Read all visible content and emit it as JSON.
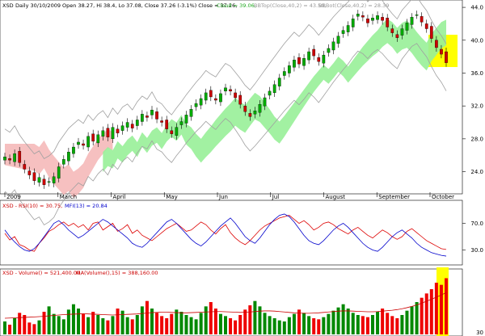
{
  "header": {
    "ticker": "XSD",
    "main_text": "Daily 30/10/2009 Open 38.27, Hi 38.4, Lo 37.08, Close 37.26 (-3.1%) Close = 37.26,",
    "cloud_text": "Cloud = 39.06,",
    "bbtop_text": "BBTop(Close,40,2) = 43.50,",
    "bbbot_text": "BBBot(Close,40,2) = 28.39"
  },
  "indicators": {
    "rsi_label": "XSD - RSI(10) = 30.75,",
    "mfi_label": "MFI(13) = 20.84",
    "volume_label": "XSD - Volume() = 521,400.00,",
    "ma_label": "MA(Volume(),15) = 388,160.00"
  },
  "colors": {
    "candle_up": "#00aa00",
    "candle_down": "#cc0000",
    "cloud_bull": "#98f098",
    "cloud_bear": "#f5b5b5",
    "bollinger": "#a0a0a0",
    "rsi": "#dd0000",
    "mfi": "#0000cc",
    "highlight": "#ffff00",
    "vol_up": "#008800",
    "vol_down": "#ee0000"
  },
  "chart_data": [
    {
      "type": "candlestick",
      "title": "XSD Daily 30/10/2009",
      "x_months": [
        "2009",
        "March",
        "April",
        "May",
        "Jun",
        "Jul",
        "August",
        "September",
        "October"
      ],
      "ylim": [
        21.5,
        44.5
      ],
      "y_ticks": [
        24.0,
        28.0,
        32.0,
        36.0,
        40.0,
        44.0
      ],
      "close_series": [
        25.8,
        25.4,
        26.2,
        25.1,
        24.3,
        23.6,
        22.9,
        23.3,
        22.4,
        22.8,
        23.4,
        24.6,
        25.5,
        26.4,
        27.0,
        27.6,
        27.2,
        28.3,
        27.7,
        28.5,
        29.0,
        28.2,
        29.4,
        28.7,
        29.6,
        30.0,
        29.3,
        30.3,
        31.0,
        30.6,
        31.5,
        30.4,
        30.0,
        29.2,
        28.6,
        29.4,
        30.1,
        30.9,
        31.6,
        32.3,
        32.9,
        33.6,
        33.1,
        32.7,
        33.5,
        34.2,
        33.8,
        33.0,
        32.2,
        31.3,
        30.7,
        31.4,
        32.2,
        33.0,
        33.8,
        34.6,
        35.4,
        36.2,
        36.9,
        37.6,
        37.1,
        37.8,
        38.6,
        38.1,
        37.4,
        38.2,
        39.0,
        39.8,
        40.5,
        41.2,
        41.8,
        42.6,
        43.2,
        42.8,
        42.1,
        42.7,
        43.0,
        42.4,
        41.6,
        40.9,
        40.3,
        41.4,
        42.1,
        42.8,
        43.1,
        42.2,
        41.4,
        40.2,
        39.1,
        38.3,
        37.26
      ],
      "bb_top": 43.5,
      "bb_bottom": 28.39,
      "cloud": 39.06,
      "last": {
        "open": 38.27,
        "high": 38.4,
        "low": 37.08,
        "close": 37.26,
        "change_pct": -3.1
      }
    },
    {
      "type": "line",
      "title": "RSI(10) / MFI(13)",
      "y_ticks": [
        30.0,
        70.0
      ],
      "series": [
        {
          "name": "RSI(10)",
          "values": [
            55,
            45,
            50,
            38,
            35,
            30,
            28,
            40,
            48,
            58,
            62,
            68,
            72,
            66,
            70,
            64,
            68,
            60,
            70,
            72,
            60,
            65,
            70,
            58,
            62,
            68,
            55,
            60,
            52,
            48,
            44,
            50,
            56,
            62,
            66,
            70,
            64,
            58,
            60,
            66,
            72,
            68,
            60,
            54,
            62,
            68,
            56,
            48,
            42,
            38,
            44,
            52,
            60,
            66,
            70,
            74,
            78,
            80,
            82,
            76,
            70,
            74,
            68,
            60,
            64,
            70,
            72,
            68,
            62,
            58,
            54,
            60,
            64,
            58,
            52,
            48,
            54,
            60,
            56,
            50,
            46,
            50,
            58,
            62,
            56,
            50,
            44,
            40,
            36,
            32,
            30.75
          ]
        },
        {
          "name": "MFI(13)",
          "values": [
            60,
            50,
            42,
            35,
            30,
            28,
            32,
            40,
            50,
            60,
            70,
            74,
            68,
            60,
            54,
            48,
            52,
            58,
            64,
            70,
            76,
            72,
            66,
            60,
            54,
            48,
            40,
            36,
            34,
            40,
            48,
            56,
            64,
            72,
            76,
            70,
            62,
            54,
            46,
            40,
            36,
            42,
            50,
            58,
            66,
            72,
            78,
            70,
            60,
            50,
            44,
            40,
            48,
            58,
            68,
            76,
            82,
            84,
            80,
            72,
            62,
            52,
            44,
            40,
            38,
            44,
            52,
            60,
            66,
            70,
            64,
            56,
            48,
            40,
            34,
            30,
            28,
            34,
            42,
            50,
            56,
            60,
            54,
            48,
            40,
            34,
            30,
            26,
            24,
            22,
            20.84
          ]
        }
      ]
    },
    {
      "type": "bar",
      "title": "Volume / MA(Volume,15)",
      "y_ticks": [
        30
      ],
      "series": [
        {
          "name": "Volume",
          "values": [
            120,
            90,
            150,
            200,
            180,
            110,
            95,
            130,
            210,
            260,
            190,
            170,
            140,
            230,
            280,
            240,
            190,
            160,
            210,
            180,
            150,
            130,
            170,
            240,
            220,
            160,
            140,
            180,
            260,
            310,
            240,
            200,
            170,
            150,
            190,
            230,
            210,
            180,
            160,
            140,
            200,
            260,
            300,
            240,
            190,
            170,
            150,
            130,
            180,
            230,
            270,
            310,
            260,
            200,
            170,
            150,
            130,
            120,
            160,
            190,
            230,
            200,
            170,
            150,
            140,
            160,
            190,
            220,
            250,
            280,
            240,
            200,
            180,
            170,
            160,
            180,
            210,
            240,
            200,
            170,
            150,
            180,
            220,
            260,
            300,
            340,
            380,
            420,
            480,
            460,
            521.4
          ]
        },
        {
          "name": "MA(Volume(),15)",
          "values": [
            150,
            152,
            154,
            156,
            158,
            160,
            162,
            165,
            168,
            172,
            176,
            180,
            184,
            186,
            188,
            190,
            192,
            190,
            188,
            186,
            184,
            182,
            180,
            182,
            184,
            186,
            188,
            190,
            194,
            198,
            202,
            204,
            206,
            206,
            204,
            202,
            200,
            200,
            202,
            204,
            206,
            208,
            210,
            212,
            212,
            210,
            208,
            206,
            204,
            206,
            208,
            212,
            216,
            218,
            218,
            216,
            212,
            208,
            204,
            200,
            198,
            196,
            196,
            198,
            200,
            204,
            208,
            212,
            216,
            218,
            218,
            216,
            214,
            212,
            210,
            210,
            212,
            216,
            220,
            224,
            230,
            238,
            248,
            260,
            274,
            290,
            308,
            326,
            346,
            366,
            388.16
          ]
        }
      ]
    }
  ]
}
